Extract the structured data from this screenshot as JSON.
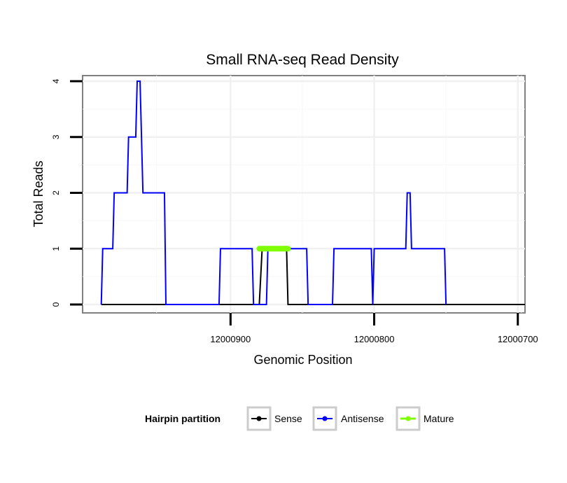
{
  "chart_data": {
    "type": "line",
    "title": "Small RNA-seq Read Density",
    "xlabel": "Genomic Position",
    "ylabel": "Total Reads",
    "xlim": [
      12001003,
      12000695
    ],
    "ylim": [
      -0.15,
      4.1
    ],
    "x_reversed": true,
    "grid": true,
    "x_ticks": [
      12000900,
      12000800,
      12000700
    ],
    "x_tick_labels": [
      "12000900",
      "12000800",
      "12000700"
    ],
    "y_ticks": [
      0,
      1,
      2,
      3,
      4
    ],
    "y_tick_labels": [
      "0",
      "1",
      "2",
      "3",
      "4"
    ],
    "legend": {
      "title": "Hairpin partition",
      "position": "bottom",
      "entries": [
        "Sense",
        "Antisense",
        "Mature"
      ]
    },
    "series": [
      {
        "name": "Sense",
        "color": "#000000",
        "points": [
          [
            12000990,
            0
          ],
          [
            12000890,
            0
          ],
          [
            12000880,
            0
          ],
          [
            12000878,
            1
          ],
          [
            12000861,
            1
          ],
          [
            12000860,
            0
          ],
          [
            12000695,
            0
          ]
        ]
      },
      {
        "name": "Antisense",
        "color": "#0000ff",
        "points": [
          [
            12000990,
            0
          ],
          [
            12000989,
            1
          ],
          [
            12000982,
            1
          ],
          [
            12000981,
            2
          ],
          [
            12000972,
            2
          ],
          [
            12000971,
            3
          ],
          [
            12000966,
            3
          ],
          [
            12000965,
            4
          ],
          [
            12000963,
            4
          ],
          [
            12000962,
            3
          ],
          [
            12000961,
            2
          ],
          [
            12000946,
            2
          ],
          [
            12000945,
            0
          ],
          [
            12000908,
            0
          ],
          [
            12000907,
            1
          ],
          [
            12000888,
            1
          ],
          [
            12000887,
            1
          ],
          [
            12000885,
            1
          ],
          [
            12000884,
            0
          ],
          [
            12000875,
            0
          ],
          [
            12000874,
            1
          ],
          [
            12000847,
            1
          ],
          [
            12000846,
            0
          ],
          [
            12000829,
            0
          ],
          [
            12000828,
            1
          ],
          [
            12000802,
            1
          ],
          [
            12000801,
            0
          ],
          [
            12000800,
            1
          ],
          [
            12000778,
            1
          ],
          [
            12000777,
            2
          ],
          [
            12000775,
            2
          ],
          [
            12000774,
            1
          ],
          [
            12000751,
            1
          ],
          [
            12000750,
            0
          ]
        ]
      },
      {
        "name": "Mature",
        "color": "#7fff00",
        "points": [
          [
            12000880,
            1
          ],
          [
            12000860,
            1
          ]
        ]
      }
    ]
  }
}
